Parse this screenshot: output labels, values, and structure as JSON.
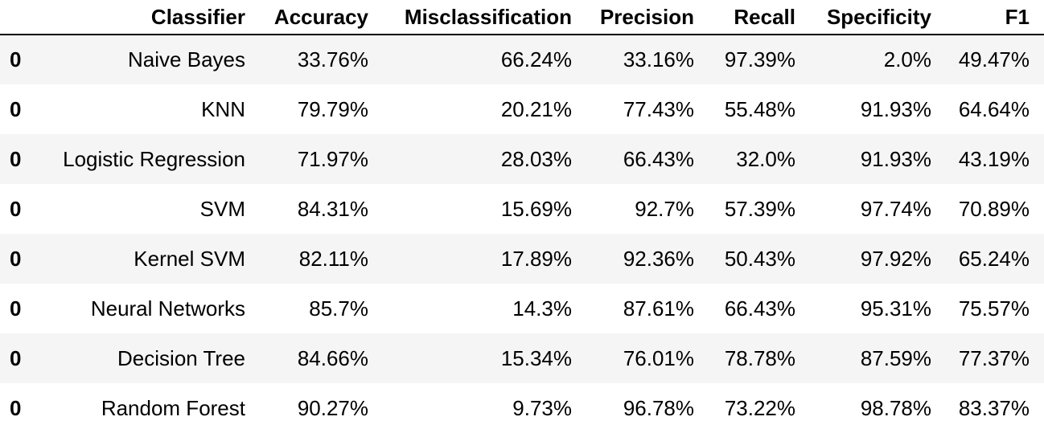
{
  "table": {
    "columns": [
      "",
      "Classifier",
      "Accuracy",
      "Misclassification",
      "Precision",
      "Recall",
      "Specificity",
      "F1"
    ],
    "rows": [
      {
        "index": "0",
        "cells": [
          "Naive Bayes",
          "33.76%",
          "66.24%",
          "33.16%",
          "97.39%",
          "2.0%",
          "49.47%"
        ]
      },
      {
        "index": "0",
        "cells": [
          "KNN",
          "79.79%",
          "20.21%",
          "77.43%",
          "55.48%",
          "91.93%",
          "64.64%"
        ]
      },
      {
        "index": "0",
        "cells": [
          "Logistic Regression",
          "71.97%",
          "28.03%",
          "66.43%",
          "32.0%",
          "91.93%",
          "43.19%"
        ]
      },
      {
        "index": "0",
        "cells": [
          "SVM",
          "84.31%",
          "15.69%",
          "92.7%",
          "57.39%",
          "97.74%",
          "70.89%"
        ]
      },
      {
        "index": "0",
        "cells": [
          "Kernel SVM",
          "82.11%",
          "17.89%",
          "92.36%",
          "50.43%",
          "97.92%",
          "65.24%"
        ]
      },
      {
        "index": "0",
        "cells": [
          "Neural Networks",
          "85.7%",
          "14.3%",
          "87.61%",
          "66.43%",
          "95.31%",
          "75.57%"
        ]
      },
      {
        "index": "0",
        "cells": [
          "Decision Tree",
          "84.66%",
          "15.34%",
          "76.01%",
          "78.78%",
          "87.59%",
          "77.37%"
        ]
      },
      {
        "index": "0",
        "cells": [
          "Random Forest",
          "90.27%",
          "9.73%",
          "96.78%",
          "73.22%",
          "98.78%",
          "83.37%"
        ]
      }
    ]
  }
}
